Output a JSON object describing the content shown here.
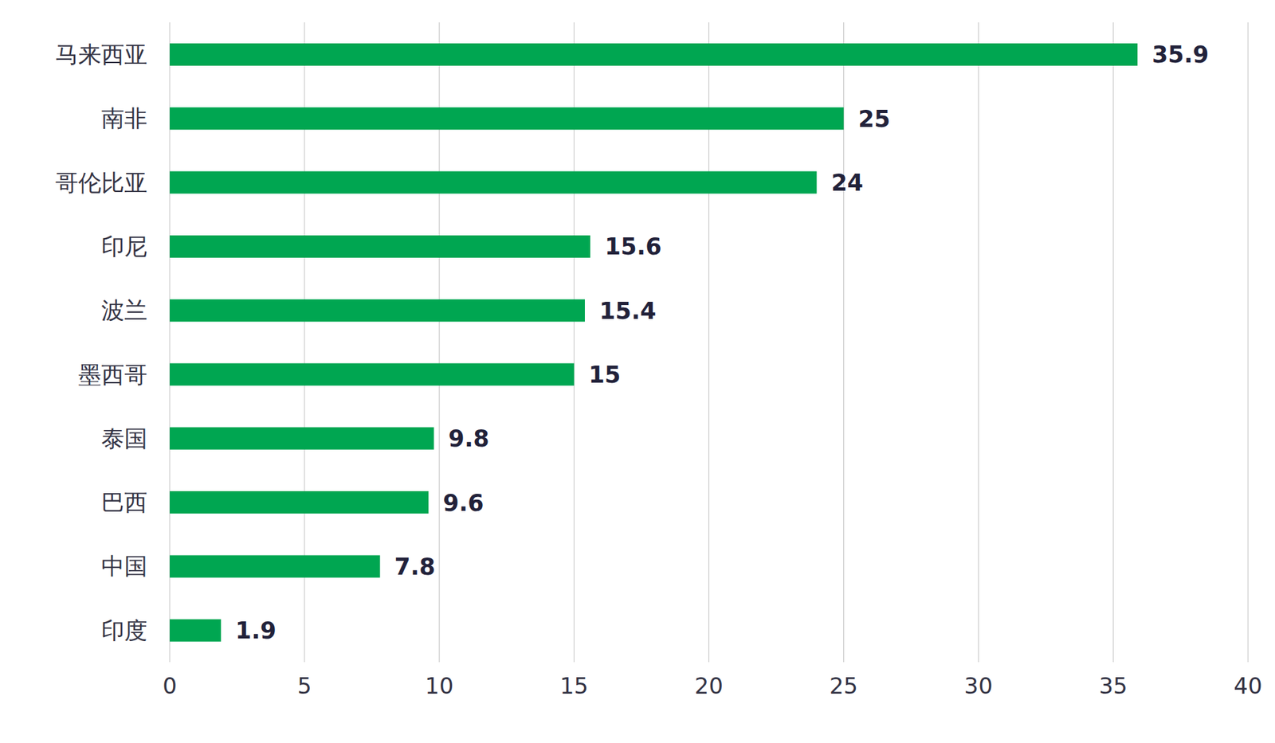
{
  "chart_data": {
    "type": "bar",
    "orientation": "horizontal",
    "categories": [
      "马来西亚",
      "南非",
      "哥伦比亚",
      "印尼",
      "波兰",
      "墨西哥",
      "泰国",
      "巴西",
      "中国",
      "印度"
    ],
    "values": [
      35.9,
      25,
      24,
      15.6,
      15.4,
      15,
      9.8,
      9.6,
      7.8,
      1.9
    ],
    "color": "#00a651",
    "xlim": [
      0,
      40
    ],
    "xticks": [
      0,
      5,
      10,
      15,
      20,
      25,
      30,
      35,
      40
    ],
    "grid": true,
    "data_labels": true
  }
}
